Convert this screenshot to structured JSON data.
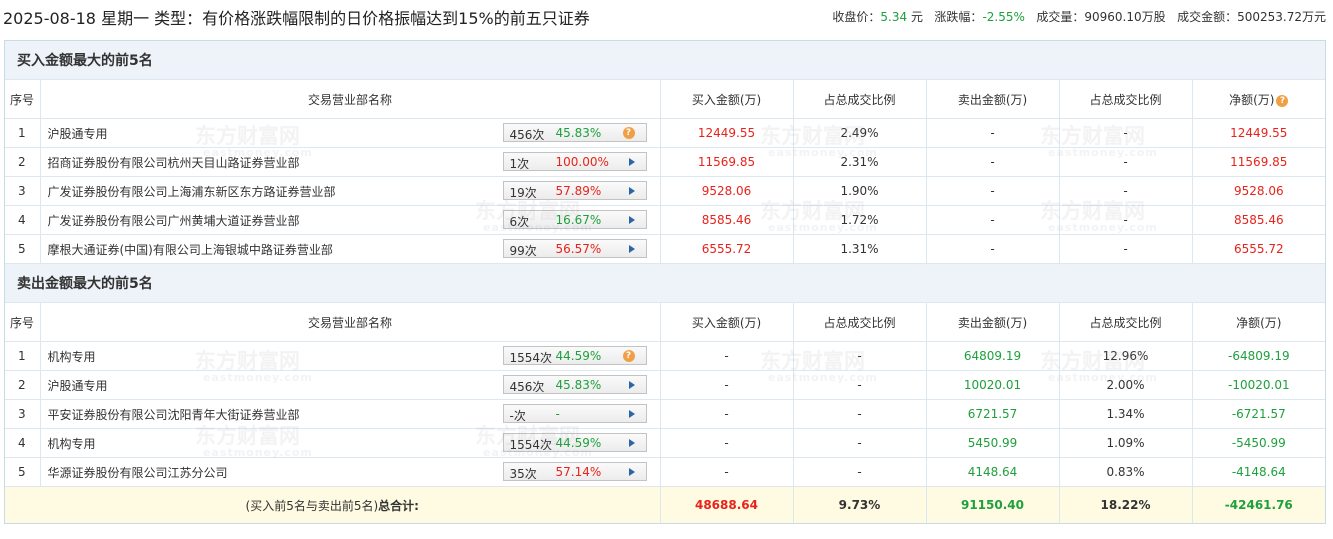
{
  "header": {
    "title": "2025-08-18 星期一 类型：有价格涨跌幅限制的日价格振幅达到15%的前五只证券",
    "close_label": "收盘价：",
    "close_value": "5.34",
    "close_unit": "元",
    "change_label": "涨跌幅：",
    "change_value": "-2.55%",
    "volume_label": "成交量：",
    "volume_value": "90960.10万股",
    "amount_label": "成交金额：",
    "amount_value": "500253.72万元"
  },
  "columns": {
    "idx": "序号",
    "name": "交易营业部名称",
    "buy": "买入金额(万)",
    "buy_ratio": "占总成交比例",
    "sell": "卖出金额(万)",
    "sell_ratio": "占总成交比例",
    "net": "净额(万)"
  },
  "buy_section": {
    "title": "买入金额最大的前5名",
    "rows": [
      {
        "idx": "1",
        "name": "沪股通专用",
        "times": "456次",
        "pct": "45.83%",
        "icon": "question-icon",
        "buy": "12449.55",
        "buy_ratio": "2.49%",
        "sell": "-",
        "sell_ratio": "-",
        "net": "12449.55"
      },
      {
        "idx": "2",
        "name": "招商证券股份有限公司杭州天目山路证券营业部",
        "times": "1次",
        "pct": "100.00%",
        "icon": "play-triangle-icon",
        "buy": "11569.85",
        "buy_ratio": "2.31%",
        "sell": "-",
        "sell_ratio": "-",
        "net": "11569.85"
      },
      {
        "idx": "3",
        "name": "广发证券股份有限公司上海浦东新区东方路证券营业部",
        "times": "19次",
        "pct": "57.89%",
        "icon": "play-triangle-icon",
        "buy": "9528.06",
        "buy_ratio": "1.90%",
        "sell": "-",
        "sell_ratio": "-",
        "net": "9528.06"
      },
      {
        "idx": "4",
        "name": "广发证券股份有限公司广州黄埔大道证券营业部",
        "times": "6次",
        "pct": "16.67%",
        "icon": "play-triangle-icon",
        "buy": "8585.46",
        "buy_ratio": "1.72%",
        "sell": "-",
        "sell_ratio": "-",
        "net": "8585.46"
      },
      {
        "idx": "5",
        "name": "摩根大通证券(中国)有限公司上海银城中路证券营业部",
        "times": "99次",
        "pct": "56.57%",
        "icon": "play-triangle-icon",
        "buy": "6555.72",
        "buy_ratio": "1.31%",
        "sell": "-",
        "sell_ratio": "-",
        "net": "6555.72"
      }
    ]
  },
  "sell_section": {
    "title": "卖出金额最大的前5名",
    "rows": [
      {
        "idx": "1",
        "name": "机构专用",
        "times": "1554次",
        "pct": "44.59%",
        "icon": "question-icon",
        "buy": "-",
        "buy_ratio": "-",
        "sell": "64809.19",
        "sell_ratio": "12.96%",
        "net": "-64809.19"
      },
      {
        "idx": "2",
        "name": "沪股通专用",
        "times": "456次",
        "pct": "45.83%",
        "icon": "play-triangle-icon",
        "buy": "-",
        "buy_ratio": "-",
        "sell": "10020.01",
        "sell_ratio": "2.00%",
        "net": "-10020.01"
      },
      {
        "idx": "3",
        "name": "平安证券股份有限公司沈阳青年大街证券营业部",
        "times": "-次",
        "pct": "-",
        "icon": "play-triangle-icon",
        "buy": "-",
        "buy_ratio": "-",
        "sell": "6721.57",
        "sell_ratio": "1.34%",
        "net": "-6721.57"
      },
      {
        "idx": "4",
        "name": "机构专用",
        "times": "1554次",
        "pct": "44.59%",
        "icon": "play-triangle-icon",
        "buy": "-",
        "buy_ratio": "-",
        "sell": "5450.99",
        "sell_ratio": "1.09%",
        "net": "-5450.99"
      },
      {
        "idx": "5",
        "name": "华源证券股份有限公司江苏分公司",
        "times": "35次",
        "pct": "57.14%",
        "icon": "play-triangle-icon",
        "buy": "-",
        "buy_ratio": "-",
        "sell": "4148.64",
        "sell_ratio": "0.83%",
        "net": "-4148.64"
      }
    ]
  },
  "total": {
    "label_prefix": "(买入前5名与卖出前5名)",
    "label_bold": "总合计:",
    "buy": "48688.64",
    "buy_ratio": "9.73%",
    "sell": "91150.40",
    "sell_ratio": "18.22%",
    "net": "-42461.76"
  },
  "watermark": {
    "cn": "东方财富网",
    "en": "eastmoney.com"
  },
  "colors": {
    "up": "#e8231b",
    "down": "#1ea03d",
    "section_bg": "#edf3f9",
    "total_bg": "#fffbe3",
    "accent_icon": "#f0a044"
  }
}
